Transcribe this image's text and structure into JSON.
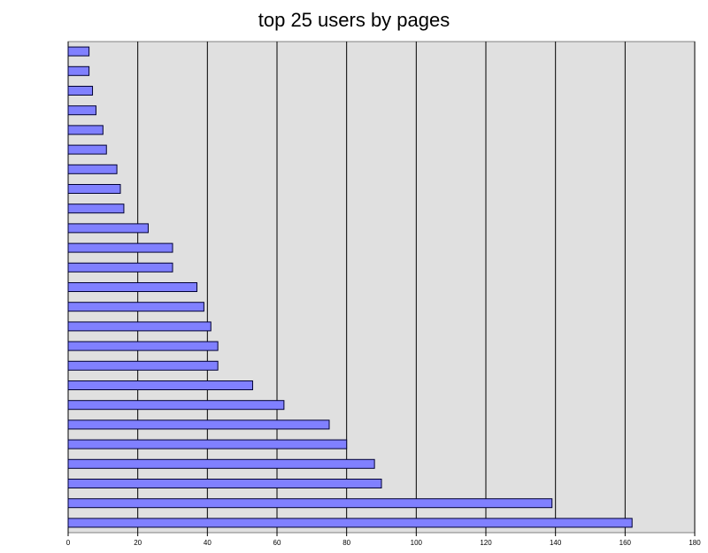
{
  "chart_data": {
    "type": "barh",
    "title": "top 25 users by pages",
    "categories": [
      null,
      null,
      null,
      null,
      null,
      null,
      null,
      null,
      null,
      null,
      null,
      null,
      null,
      null,
      null,
      null,
      null,
      null,
      null,
      null,
      null,
      null,
      null,
      null,
      null
    ],
    "values": [
      6,
      6,
      7,
      8,
      10,
      11,
      14,
      15,
      16,
      23,
      30,
      30,
      37,
      39,
      41,
      43,
      43,
      53,
      62,
      75,
      80,
      88,
      90,
      139,
      162
    ],
    "color": "#8080ff",
    "xlim": [
      0,
      180
    ],
    "xticks": [
      0,
      20,
      40,
      60,
      80,
      100,
      120,
      140,
      160,
      180
    ],
    "grid": true
  }
}
